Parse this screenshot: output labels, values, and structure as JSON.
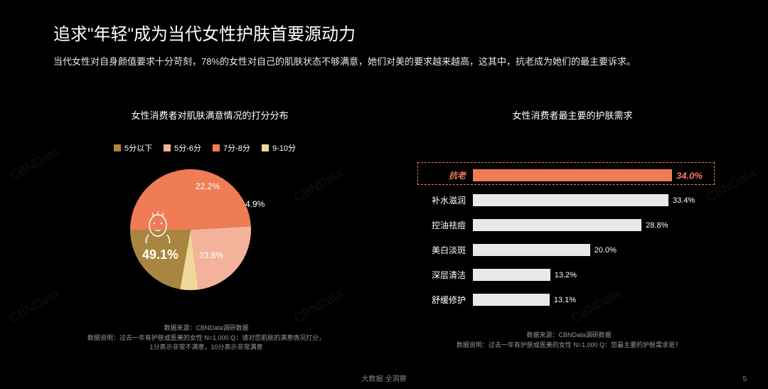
{
  "title": "追求\"年轻\"成为当代女性护肤首要源动力",
  "subtitle": "当代女性对自身颜值要求十分苛刻，78%的女性对自己的肌肤状态不够满意，她们对美的要求越来越高，这其中，抗老成为她们的最主要诉求。",
  "left_chart": {
    "title": "女性消费者对肌肤满意情况的打分分布",
    "type": "pie",
    "legend": [
      {
        "label": "5分以下",
        "color": "#a98640"
      },
      {
        "label": "5分-6分",
        "color": "#f5b29a"
      },
      {
        "label": "7分-8分",
        "color": "#ef7c55"
      },
      {
        "label": "9-10分",
        "color": "#f0d89a"
      }
    ],
    "slices": [
      {
        "label": "49.1%",
        "value": 49.1,
        "color": "#ef7c55",
        "big": true
      },
      {
        "label": "23.8%",
        "value": 23.8,
        "color": "#f5b29a"
      },
      {
        "label": "4.9%",
        "value": 4.9,
        "color": "#f0d89a"
      },
      {
        "label": "22.2%",
        "value": 22.2,
        "color": "#a98640"
      }
    ],
    "source_line1": "数据来源：CBNData调研数据",
    "source_line2": "数据说明：过去一年有护肤或医美的女性 N=1,000 Q：请对您肌肤的满意情况打分，",
    "source_line3": "1分表示非常不满意，10分表示非常满意"
  },
  "right_chart": {
    "title": "女性消费者最主要的护肤需求",
    "type": "bar",
    "max": 34.0,
    "bar_color": "#e8e8e8",
    "highlight_color": "#ef7c55",
    "rows": [
      {
        "label": "抗老",
        "value": 34.0,
        "text": "34.0%",
        "highlight": true
      },
      {
        "label": "补水滋润",
        "value": 33.4,
        "text": "33.4%"
      },
      {
        "label": "控油祛痘",
        "value": 28.8,
        "text": "28.8%"
      },
      {
        "label": "美白淡斑",
        "value": 20.0,
        "text": "20.0%"
      },
      {
        "label": "深层清洁",
        "value": 13.2,
        "text": "13.2%"
      },
      {
        "label": "舒缓修护",
        "value": 13.1,
        "text": "13.1%"
      }
    ],
    "source_line1": "数据来源：CBNData调研数据",
    "source_line2": "数据说明：过去一年有护肤或医美的女性 N=1,000 Q：您最主要的护肤需求是？"
  },
  "footer_center": "大数据·全洞察",
  "footer_page": "5",
  "watermark": "CBNData"
}
